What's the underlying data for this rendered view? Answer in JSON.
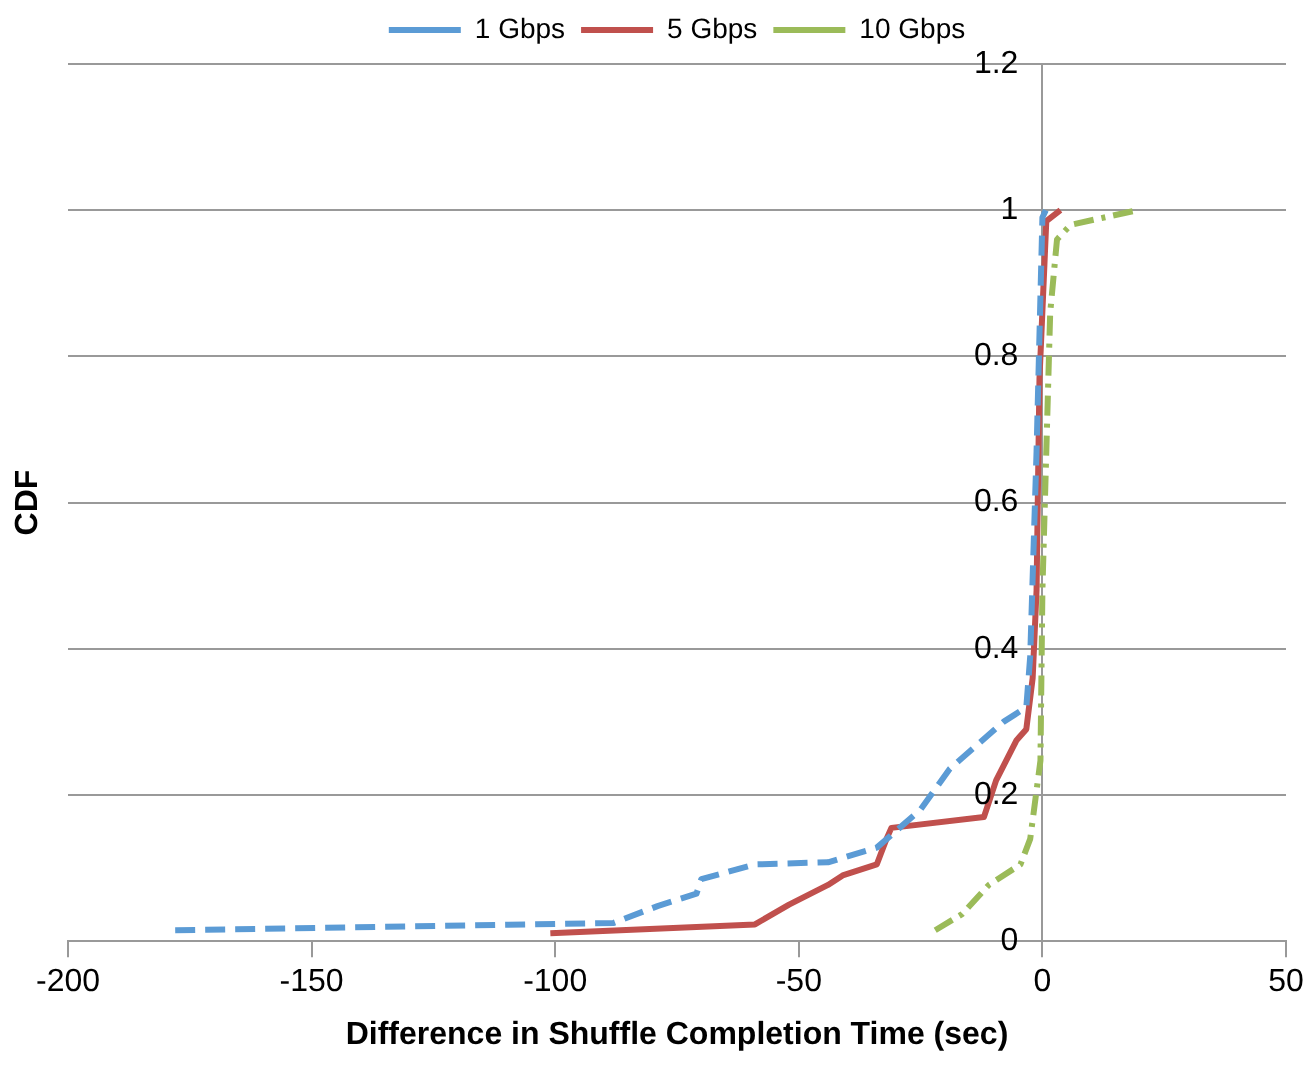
{
  "chart_data": {
    "type": "line",
    "xlabel": "Difference in Shuffle Completion Time (sec)",
    "ylabel": "CDF",
    "xlim": [
      -200,
      50
    ],
    "xticks": [
      -200,
      -150,
      -100,
      -50,
      0,
      50
    ],
    "ylim": [
      0,
      1.2
    ],
    "yticks": [
      0,
      0.2,
      0.4,
      0.6,
      0.8,
      1,
      1.2
    ],
    "grid": "y",
    "legend": "top",
    "marker": "none",
    "series": [
      {
        "name": "1 Gbps",
        "color": "#5b9bd5",
        "line_style": "dashed",
        "x": [
          -178,
          -88,
          -79,
          -71,
          -70,
          -59,
          -44,
          -34,
          -25,
          -19,
          -8,
          -3.3,
          -2.5,
          -1.2,
          0,
          0.7
        ],
        "values": [
          0.015,
          0.025,
          0.048,
          0.065,
          0.085,
          0.105,
          0.108,
          0.128,
          0.18,
          0.236,
          0.3,
          0.32,
          0.39,
          0.67,
          0.99,
          1.0
        ]
      },
      {
        "name": "5 Gbps",
        "color": "#c0504d",
        "line_style": "solid",
        "x": [
          -101,
          -59,
          -52,
          -44,
          -41,
          -34,
          -32,
          -31,
          -12,
          -9.5,
          -5.3,
          -3.3,
          -2,
          -1.2,
          -0.6,
          0.8,
          3.7
        ],
        "values": [
          0.011,
          0.023,
          0.05,
          0.077,
          0.09,
          0.105,
          0.14,
          0.155,
          0.17,
          0.22,
          0.275,
          0.29,
          0.36,
          0.48,
          0.77,
          0.985,
          1.0
        ]
      },
      {
        "name": "10 Gbps",
        "color": "#9bbb59",
        "line_style": "dashdot",
        "x": [
          -22,
          -16.5,
          -11,
          -4.5,
          -2.5,
          -0.4,
          0,
          1.6,
          3,
          5.8,
          19.5
        ],
        "values": [
          0.015,
          0.037,
          0.077,
          0.105,
          0.14,
          0.247,
          0.48,
          0.86,
          0.96,
          0.98,
          1.0
        ]
      }
    ]
  }
}
